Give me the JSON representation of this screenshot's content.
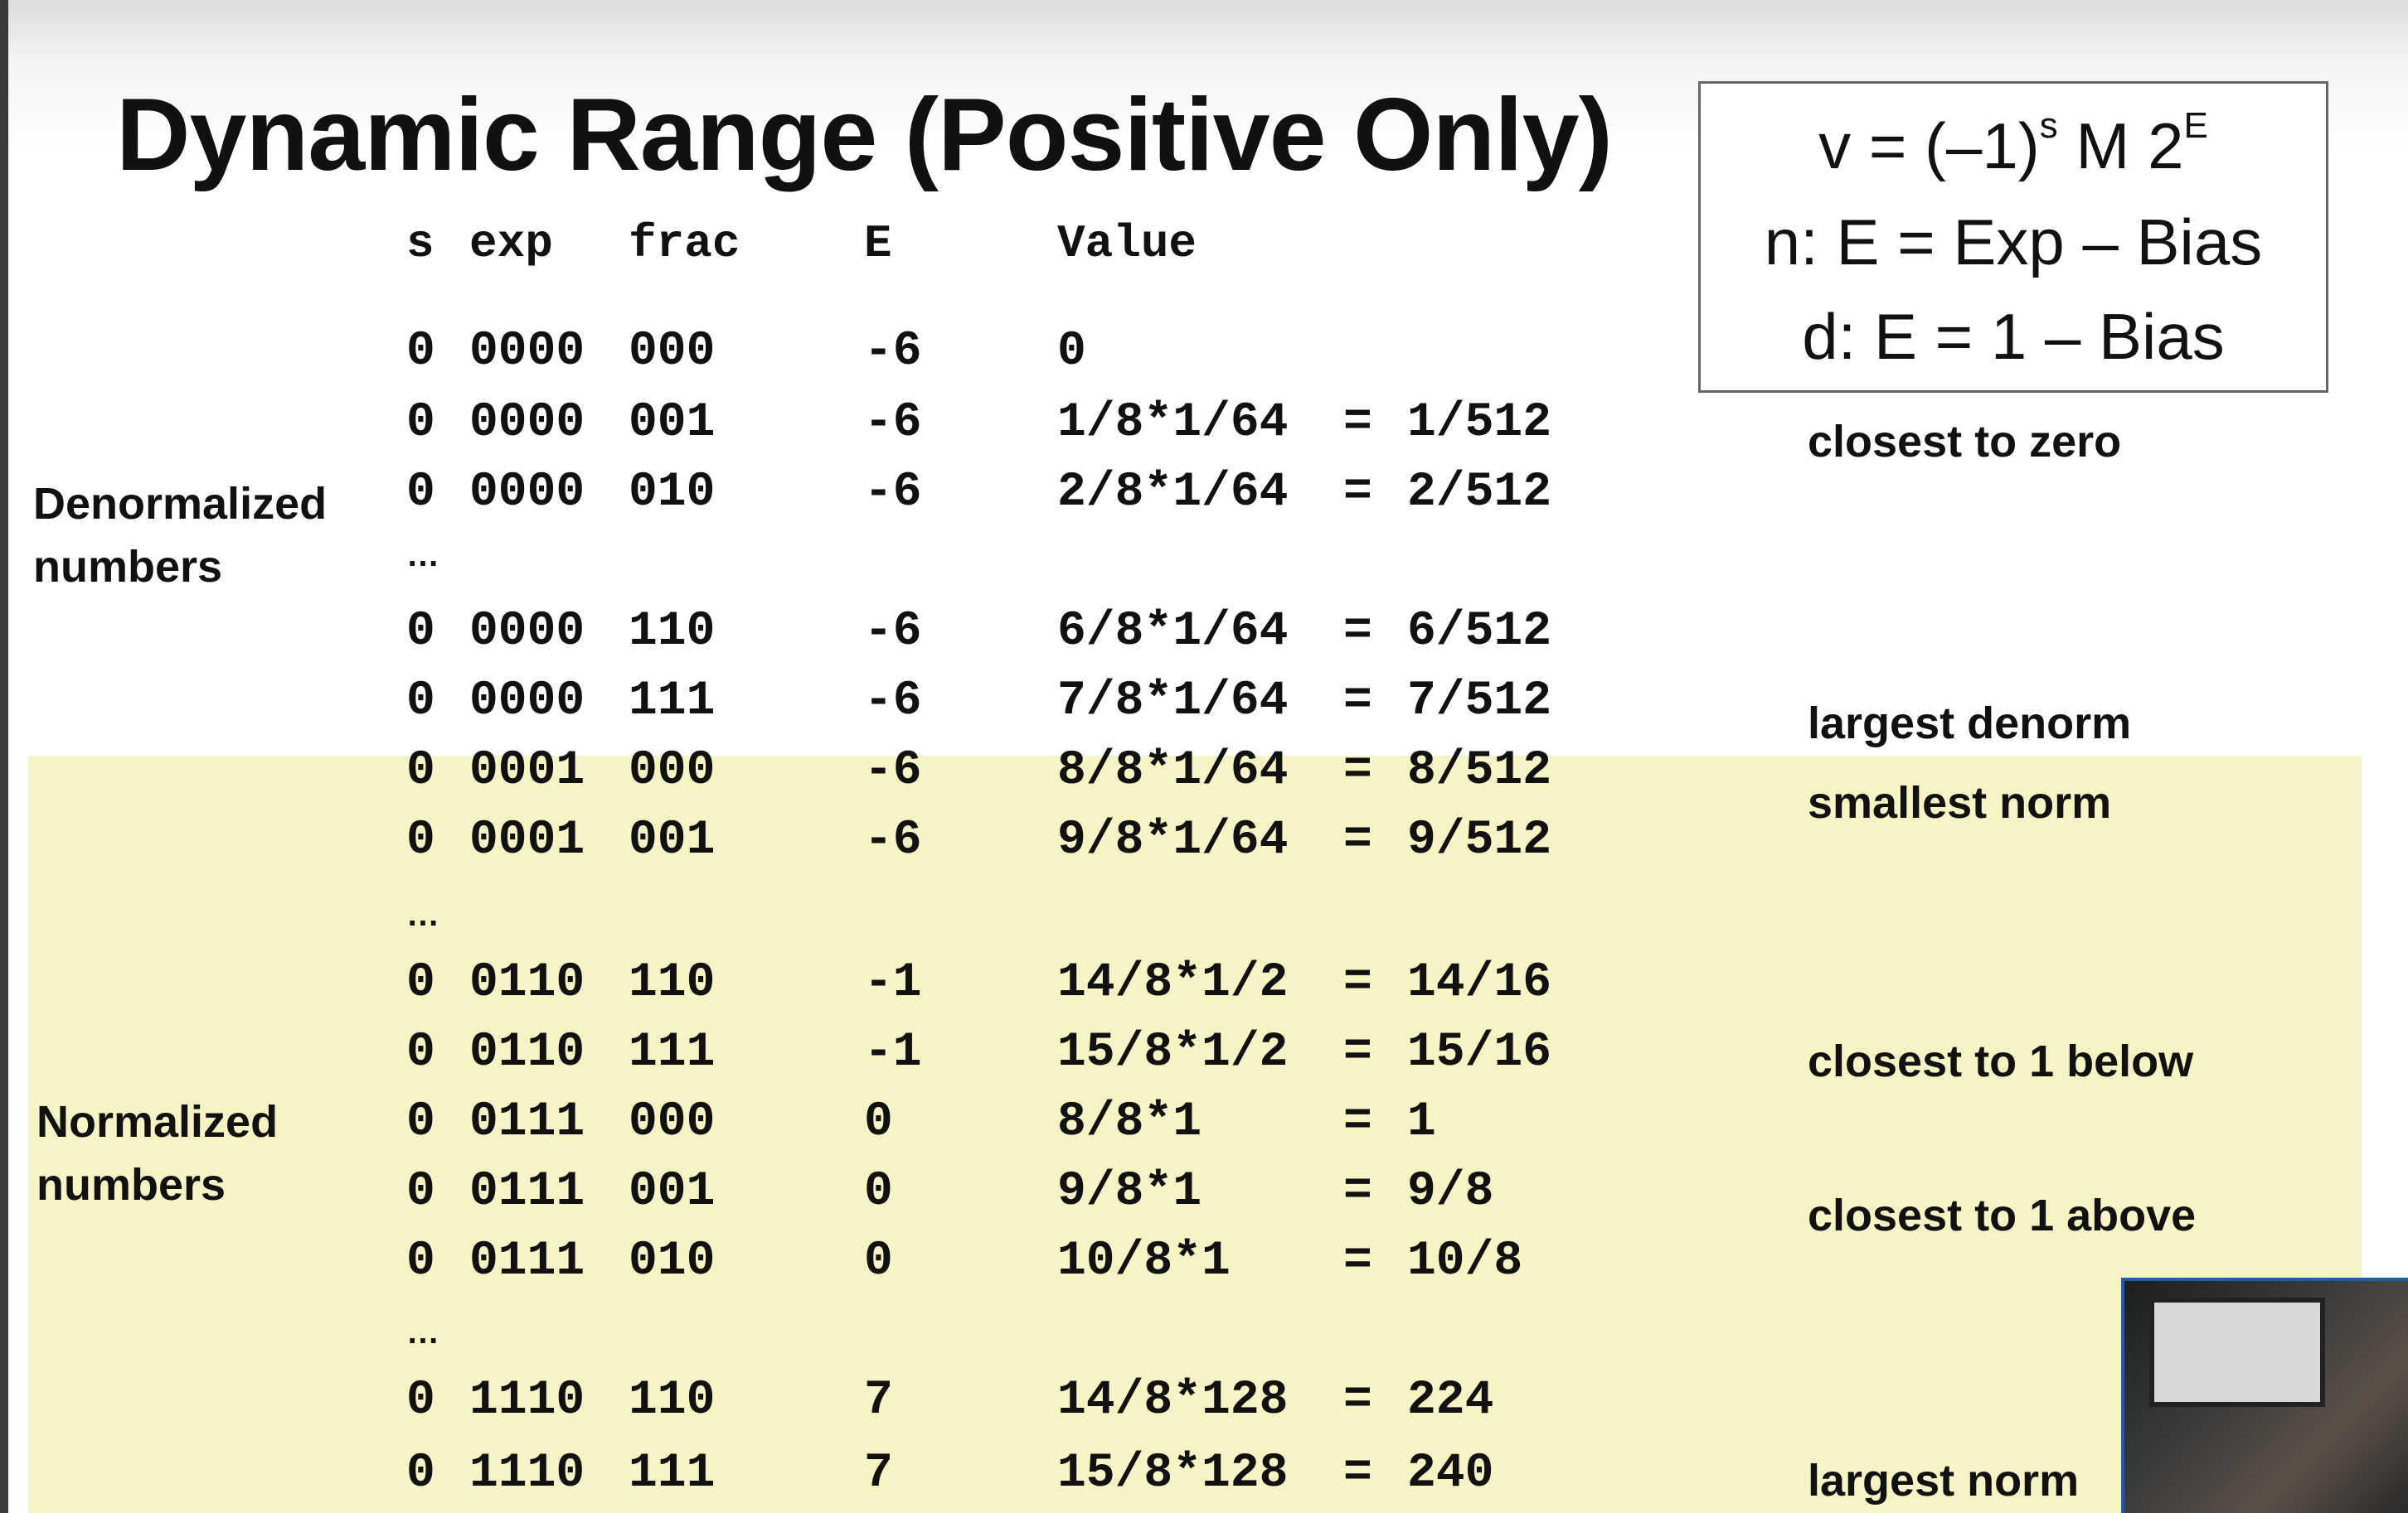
{
  "title": "Dynamic Range (Positive Only)",
  "formula": {
    "line1_pre": "v = (–1)",
    "line1_sup1": "s",
    "line1_mid": " M 2",
    "line1_sup2": "E",
    "line2": "n: E = Exp – Bias",
    "line3": "d: E = 1 – Bias"
  },
  "headers": {
    "s": "s",
    "exp": "exp",
    "frac": "frac",
    "E": "E",
    "value": "Value"
  },
  "labels": {
    "denorm_1": "Denormalized",
    "denorm_2": "numbers",
    "norm_1": "Normalized",
    "norm_2": "numbers"
  },
  "ellipsis": "…",
  "rows": [
    {
      "s": "0",
      "exp": "0000",
      "frac": "000",
      "E": "-6",
      "value": "0",
      "eq": "",
      "result": ""
    },
    {
      "s": "0",
      "exp": "0000",
      "frac": "001",
      "E": "-6",
      "value": "1/8*1/64",
      "eq": "=",
      "result": "1/512"
    },
    {
      "s": "0",
      "exp": "0000",
      "frac": "010",
      "E": "-6",
      "value": "2/8*1/64",
      "eq": "=",
      "result": "2/512"
    },
    {
      "s": "0",
      "exp": "0000",
      "frac": "110",
      "E": "-6",
      "value": "6/8*1/64",
      "eq": "=",
      "result": "6/512"
    },
    {
      "s": "0",
      "exp": "0000",
      "frac": "111",
      "E": "-6",
      "value": "7/8*1/64",
      "eq": "=",
      "result": "7/512"
    },
    {
      "s": "0",
      "exp": "0001",
      "frac": "000",
      "E": "-6",
      "value": "8/8*1/64",
      "eq": "=",
      "result": "8/512"
    },
    {
      "s": "0",
      "exp": "0001",
      "frac": "001",
      "E": "-6",
      "value": "9/8*1/64",
      "eq": "=",
      "result": "9/512"
    },
    {
      "s": "0",
      "exp": "0110",
      "frac": "110",
      "E": "-1",
      "value": "14/8*1/2",
      "eq": "=",
      "result": "14/16"
    },
    {
      "s": "0",
      "exp": "0110",
      "frac": "111",
      "E": "-1",
      "value": "15/8*1/2",
      "eq": "=",
      "result": "15/16"
    },
    {
      "s": "0",
      "exp": "0111",
      "frac": "000",
      "E": "0",
      "value": "8/8*1",
      "eq": "=",
      "result": "1"
    },
    {
      "s": "0",
      "exp": "0111",
      "frac": "001",
      "E": "0",
      "value": "9/8*1",
      "eq": "=",
      "result": "9/8"
    },
    {
      "s": "0",
      "exp": "0111",
      "frac": "010",
      "E": "0",
      "value": "10/8*1",
      "eq": "=",
      "result": "10/8"
    },
    {
      "s": "0",
      "exp": "1110",
      "frac": "110",
      "E": "7",
      "value": "14/8*128",
      "eq": "=",
      "result": "224"
    },
    {
      "s": "0",
      "exp": "1110",
      "frac": "111",
      "E": "7",
      "value": "15/8*128",
      "eq": "=",
      "result": "240"
    }
  ],
  "notes": {
    "closest_zero": "closest to zero",
    "largest_denorm": "largest denorm",
    "smallest_norm": "smallest norm",
    "closest_1_below": "closest to 1 below",
    "closest_1_above": "closest to 1 above",
    "largest_norm": "largest norm"
  },
  "colors": {
    "highlight": "#f6f4c4",
    "border": "#666666"
  }
}
